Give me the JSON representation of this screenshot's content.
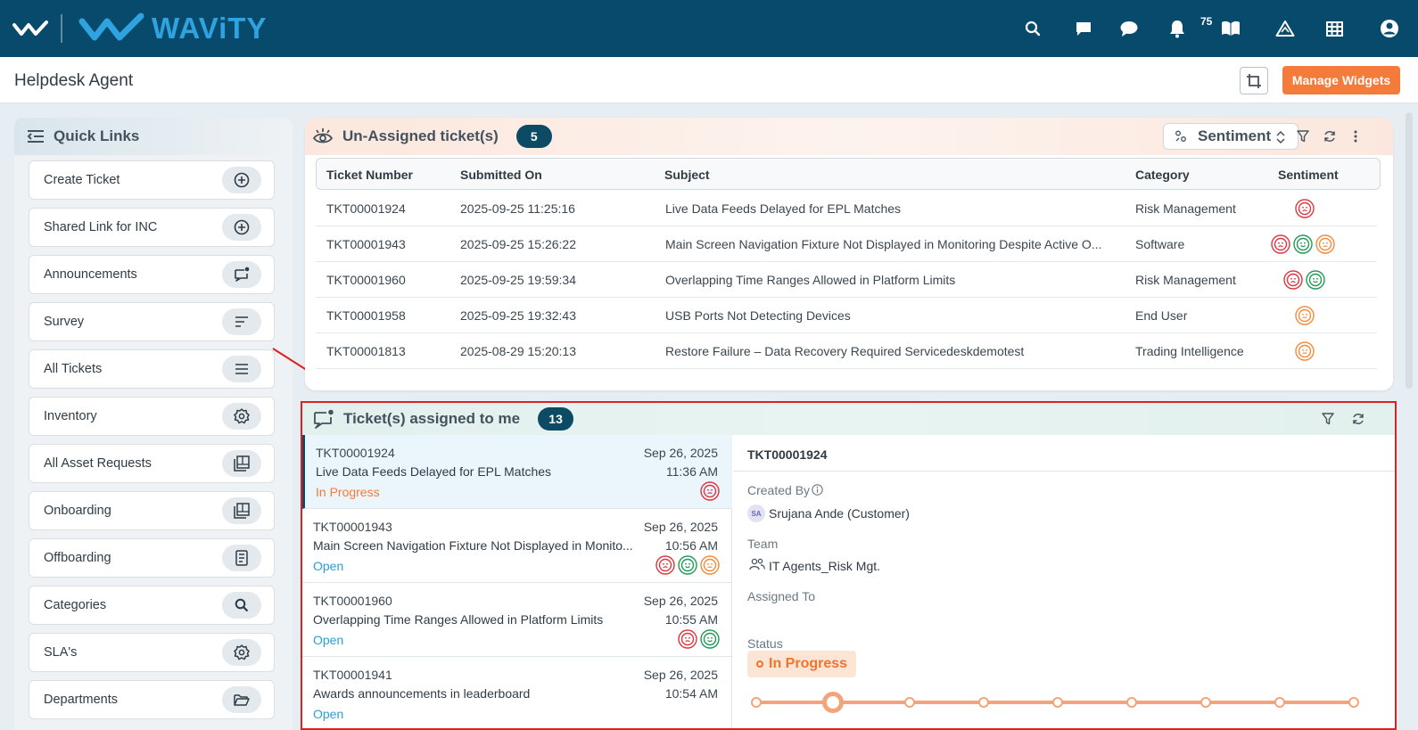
{
  "header": {
    "brand": "WAViTY",
    "notification_count": "75",
    "icons": [
      "search-icon",
      "message-square-icon",
      "chat-bubble-icon",
      "bell-icon",
      "book-icon",
      "alert-triangle-icon",
      "grid-icon",
      "user-account-icon"
    ]
  },
  "titlebar": {
    "title": "Helpdesk Agent",
    "manage_widgets": "Manage Widgets"
  },
  "quick_links": {
    "title": "Quick Links",
    "items": [
      {
        "label": "Create Ticket",
        "icon": "plus-circle-icon"
      },
      {
        "label": "Shared Link for INC",
        "icon": "plus-circle-icon"
      },
      {
        "label": "Announcements",
        "icon": "message-dot-icon"
      },
      {
        "label": "Survey",
        "icon": "sort-lines-icon"
      },
      {
        "label": "All Tickets",
        "icon": "menu-lines-icon"
      },
      {
        "label": "Inventory",
        "icon": "gear-icon"
      },
      {
        "label": "All Asset Requests",
        "icon": "gallery-icon"
      },
      {
        "label": "Onboarding",
        "icon": "gallery-icon"
      },
      {
        "label": "Offboarding",
        "icon": "document-icon"
      },
      {
        "label": "Categories",
        "icon": "search-icon"
      },
      {
        "label": "SLA's",
        "icon": "gear-icon"
      },
      {
        "label": "Departments",
        "icon": "folder-open-icon"
      }
    ]
  },
  "unassigned": {
    "title": "Un-Assigned ticket(s)",
    "count": "5",
    "sentiment_select": "Sentiment",
    "columns": [
      "Ticket Number",
      "Submitted On",
      "Subject",
      "Category",
      "Sentiment"
    ],
    "rows": [
      {
        "number": "TKT00001924",
        "submitted": "2025-09-25 11:25:16",
        "subject": "Live Data Feeds Delayed for EPL Matches",
        "category": "Risk Management",
        "sentiments": [
          "sad"
        ]
      },
      {
        "number": "TKT00001943",
        "submitted": "2025-09-25 15:26:22",
        "subject": "Main Screen Navigation Fixture Not Displayed in Monitoring Despite Active O...",
        "category": "Software",
        "sentiments": [
          "sad",
          "happy",
          "neutral"
        ]
      },
      {
        "number": "TKT00001960",
        "submitted": "2025-09-25 19:59:34",
        "subject": "Overlapping Time Ranges Allowed in Platform Limits",
        "category": "Risk Management",
        "sentiments": [
          "sad",
          "happy"
        ]
      },
      {
        "number": "TKT00001958",
        "submitted": "2025-09-25 19:32:43",
        "subject": "USB Ports Not Detecting Devices",
        "category": "End User",
        "sentiments": [
          "neutral"
        ]
      },
      {
        "number": "TKT00001813",
        "submitted": "2025-08-29 15:20:13",
        "subject": "Restore Failure – Data Recovery Required Servicedeskdemotest",
        "category": "Trading Intelligence",
        "sentiments": [
          "neutral"
        ]
      }
    ]
  },
  "assigned": {
    "title": "Ticket(s) assigned to me",
    "count": "13",
    "items": [
      {
        "number": "TKT00001924",
        "subject": "Live Data Feeds Delayed for EPL Matches",
        "status": "In Progress",
        "date": "Sep 26, 2025",
        "time": "11:36 AM",
        "sentiments": [
          "sad"
        ]
      },
      {
        "number": "TKT00001943",
        "subject": "Main Screen Navigation Fixture Not Displayed in Monito...",
        "status": "Open",
        "date": "Sep 26, 2025",
        "time": "10:56 AM",
        "sentiments": [
          "sad",
          "happy",
          "neutral"
        ]
      },
      {
        "number": "TKT00001960",
        "subject": "Overlapping Time Ranges Allowed in Platform Limits",
        "status": "Open",
        "date": "Sep 26, 2025",
        "time": "10:55 AM",
        "sentiments": [
          "sad",
          "happy"
        ]
      },
      {
        "number": "TKT00001941",
        "subject": "Awards announcements in leaderboard",
        "status": "Open",
        "date": "Sep 26, 2025",
        "time": "10:54 AM",
        "sentiments": []
      }
    ],
    "detail": {
      "number": "TKT00001924",
      "created_by_label": "Created By",
      "avatar_initials": "SA",
      "created_by": "Srujana Ande (Customer)",
      "team_label": "Team",
      "team": "IT Agents_Risk Mgt.",
      "assigned_label": "Assigned To",
      "status_label": "Status",
      "status": "In Progress"
    }
  },
  "colors": {
    "topbar": "#084a6b",
    "accent_orange": "#f47b3a",
    "badge": "#0d4a64",
    "sad": "#e0353f",
    "happy": "#1f9a55",
    "neutral": "#f58a3a",
    "open": "#2a9fd6",
    "highlight_border": "#e02020"
  }
}
